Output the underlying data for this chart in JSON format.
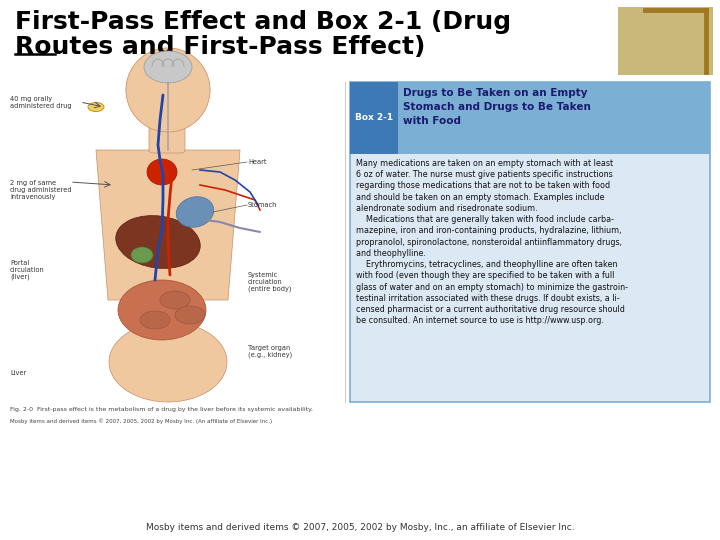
{
  "title_line1": "First-Pass Effect and Box 2-1 (Drug",
  "title_line2": "Routes and First-Pass Effect)",
  "title_fontsize": 18,
  "title_color": "#000000",
  "bg_color": "#ffffff",
  "box_header_bg": "#7bafd4",
  "box_header_label_bg": "#3d7ab5",
  "box_body_bg": "#dce9f5",
  "box_border_color": "#7bafd4",
  "box_label": "Box 2-1",
  "box_title": "Drugs to Be Taken on an Empty\nStomach and Drugs to Be Taken\nwith Food",
  "box_body_text": "Many medications are taken on an empty stomach with at least\n6 oz of water. The nurse must give patients specific instructions\nregarding those medications that are not to be taken with food\nand should be taken on an empty stomach. Examples include\nalendronate sodium and risedronate sodium.\n    Medications that are generally taken with food include carba-\nmazepine, iron and iron-containing products, hydralazine, lithium,\npropranolol, spironolactone, nonsteroidal antiinflammatory drugs,\nand theophylline.\n    Erythromycins, tetracyclines, and theophylline are often taken\nwith food (even though they are specified to be taken with a full\nglass of water and on an empty stomach) to minimize the gastroin-\ntestinal irritation associated with these drugs. If doubt exists, a li-\ncensed pharmacist or a current authoritative drug resource should\nbe consulted. An internet source to use is http://www.usp.org.",
  "corner_bracket_color": "#a07820",
  "tan_bg_color": "#c8b87a",
  "footer_text": "Mosby items and derived items © 2007, 2005, 2002 by Mosby, Inc., an affiliate of Elsevier Inc.",
  "fig_caption": "Fig. 2-0  First-pass effect is the metabolism of a drug by the liver before its systemic availability.",
  "fig_caption2": "Mosby items and derived items © 2007, 2005, 2002 by Mosby Inc. (An affiliate of Elsevier Inc.)",
  "skin_color": "#f0c8a0",
  "brain_color": "#c8c8c8",
  "liver_color": "#8b4513",
  "heart_color": "#cc2200",
  "intestine_color": "#e8a080",
  "artery_color": "#cc2200",
  "vein_color": "#2244aa",
  "spine_color": "#8888aa"
}
